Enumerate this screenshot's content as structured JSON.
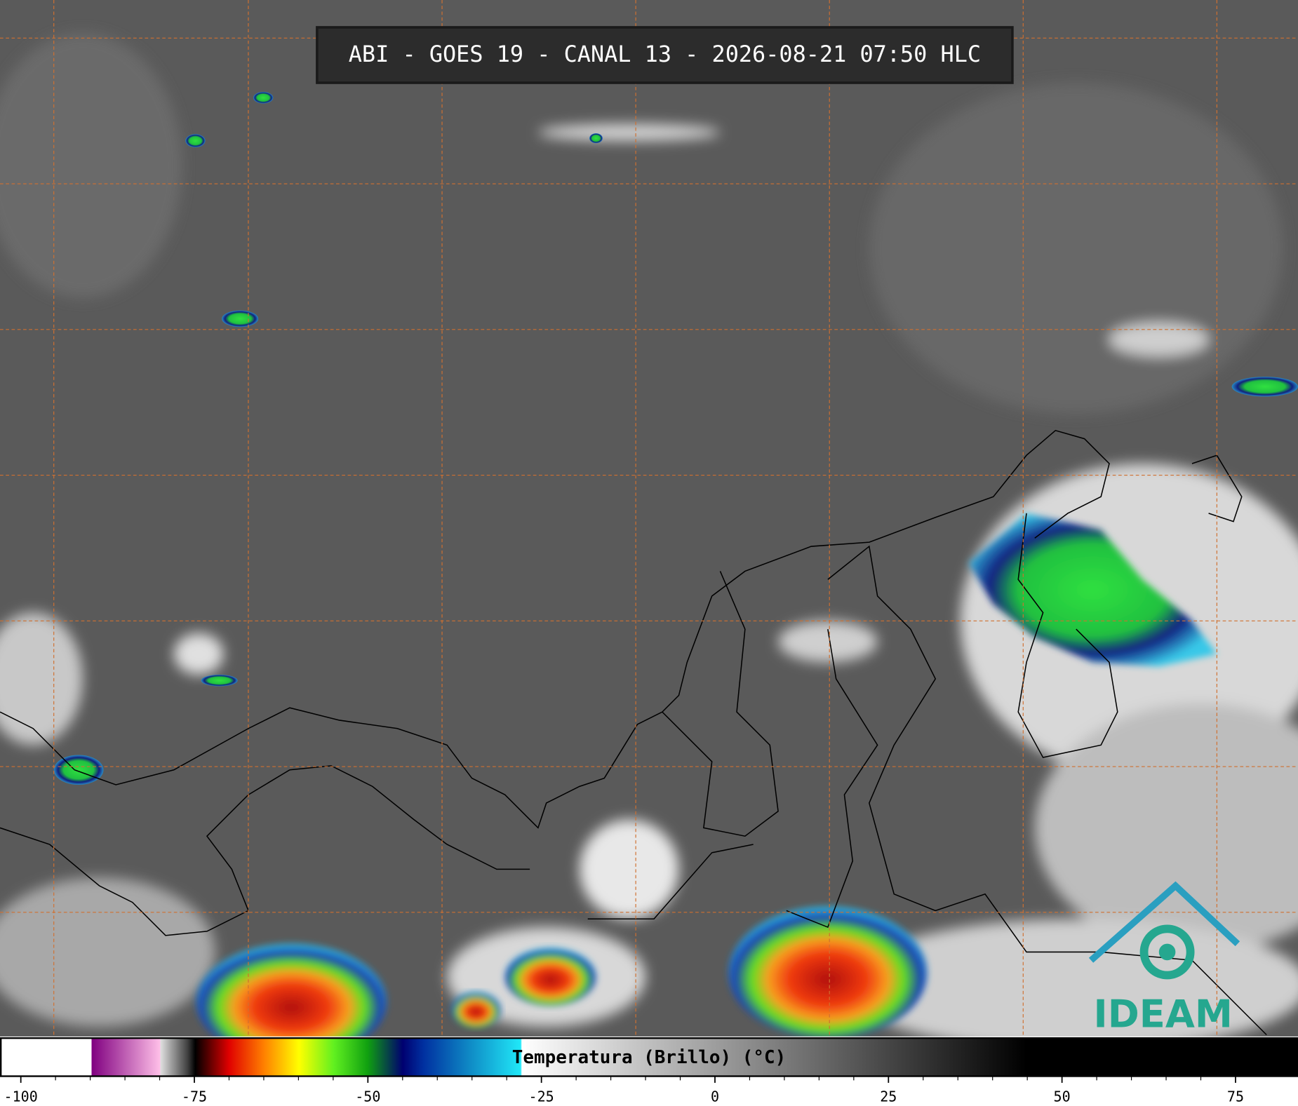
{
  "header": {
    "title": "ABI - GOES 19 - CANAL 13 - 2026-08-21 07:50 HLC"
  },
  "colorbar": {
    "label": "Temperatura (Brillo) (°C)",
    "lim": [
      -103,
      84
    ],
    "ticks": [
      -100,
      -75,
      -50,
      -25,
      0,
      25,
      50,
      75
    ]
  },
  "logo": {
    "text": "IDEAM"
  }
}
